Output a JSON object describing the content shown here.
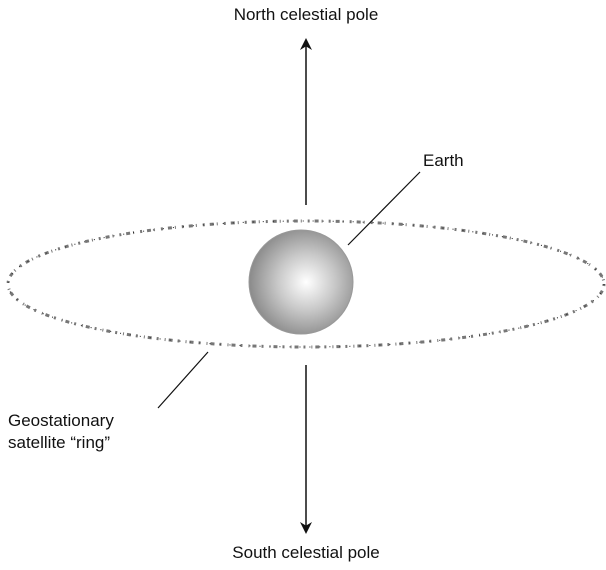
{
  "labels": {
    "north": "North celestial pole",
    "south": "South celestial pole",
    "earth": "Earth",
    "ring_line1": "Geostationary",
    "ring_line2": "satellite “ring”"
  }
}
